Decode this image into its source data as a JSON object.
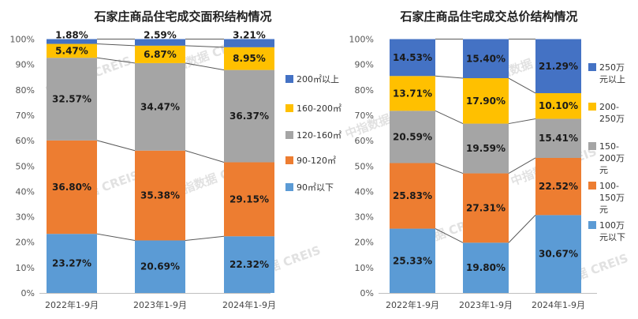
{
  "chart_data": [
    {
      "type": "bar",
      "stacked": true,
      "percent": true,
      "title": "石家庄商品住宅成交面积结构情况",
      "categories": [
        "2022年1-9月",
        "2023年1-9月",
        "2024年1-9月"
      ],
      "yticks": [
        "0%",
        "10%",
        "20%",
        "30%",
        "40%",
        "50%",
        "60%",
        "70%",
        "80%",
        "90%",
        "100%"
      ],
      "ylim": [
        0,
        100
      ],
      "legend_position": "right",
      "series": [
        {
          "name": "90㎡以下",
          "color": "#5b9bd5",
          "values": [
            23.27,
            20.69,
            22.32
          ],
          "labels": [
            "23.27%",
            "20.69%",
            "22.32%"
          ]
        },
        {
          "name": "90-120㎡",
          "color": "#ed7d31",
          "values": [
            36.8,
            35.38,
            29.15
          ],
          "labels": [
            "36.80%",
            "35.38%",
            "29.15%"
          ]
        },
        {
          "name": "120-160㎡",
          "color": "#a5a5a5",
          "values": [
            32.57,
            34.47,
            36.37
          ],
          "labels": [
            "32.57%",
            "34.47%",
            "36.37%"
          ]
        },
        {
          "name": "160-200㎡",
          "color": "#ffc000",
          "values": [
            5.47,
            6.87,
            8.95
          ],
          "labels": [
            "5.47%",
            "6.87%",
            "8.95%"
          ]
        },
        {
          "name": "200㎡以上",
          "color": "#4472c4",
          "values": [
            1.88,
            2.59,
            3.21
          ],
          "labels": [
            "1.88%",
            "2.59%",
            "3.21%"
          ]
        }
      ]
    },
    {
      "type": "bar",
      "stacked": true,
      "percent": true,
      "title": "石家庄商品住宅成交总价结构情况",
      "categories": [
        "2022年1-9月",
        "2023年1-9月",
        "2024年1-9月"
      ],
      "yticks": [
        "0%",
        "10%",
        "20%",
        "30%",
        "40%",
        "50%",
        "60%",
        "70%",
        "80%",
        "90%",
        "100%"
      ],
      "ylim": [
        0,
        100
      ],
      "legend_position": "right",
      "series": [
        {
          "name": "100万元以下",
          "legend_lines": [
            "100万",
            "元以下"
          ],
          "color": "#5b9bd5",
          "values": [
            25.33,
            19.8,
            30.67
          ],
          "labels": [
            "25.33%",
            "19.80%",
            "30.67%"
          ]
        },
        {
          "name": "100-150万元",
          "legend_lines": [
            "100-",
            "150万",
            "元"
          ],
          "color": "#ed7d31",
          "values": [
            25.83,
            27.31,
            22.52
          ],
          "labels": [
            "25.83%",
            "27.31%",
            "22.52%"
          ]
        },
        {
          "name": "150-200万元",
          "legend_lines": [
            "150-",
            "200万",
            "元"
          ],
          "color": "#a5a5a5",
          "values": [
            20.59,
            19.59,
            15.41
          ],
          "labels": [
            "20.59%",
            "19.59%",
            "15.41%"
          ]
        },
        {
          "name": "200-250万",
          "legend_lines": [
            "200-",
            "250万"
          ],
          "color": "#ffc000",
          "values": [
            13.71,
            17.9,
            10.1
          ],
          "labels": [
            "13.71%",
            "17.90%",
            "10.10%"
          ]
        },
        {
          "name": "250万元以上",
          "legend_lines": [
            "250万",
            "元以上"
          ],
          "color": "#4472c4",
          "values": [
            14.53,
            15.4,
            21.29
          ],
          "labels": [
            "14.53%",
            "15.40%",
            "21.29%"
          ]
        }
      ]
    }
  ],
  "watermark": "中指数据 CREIS"
}
